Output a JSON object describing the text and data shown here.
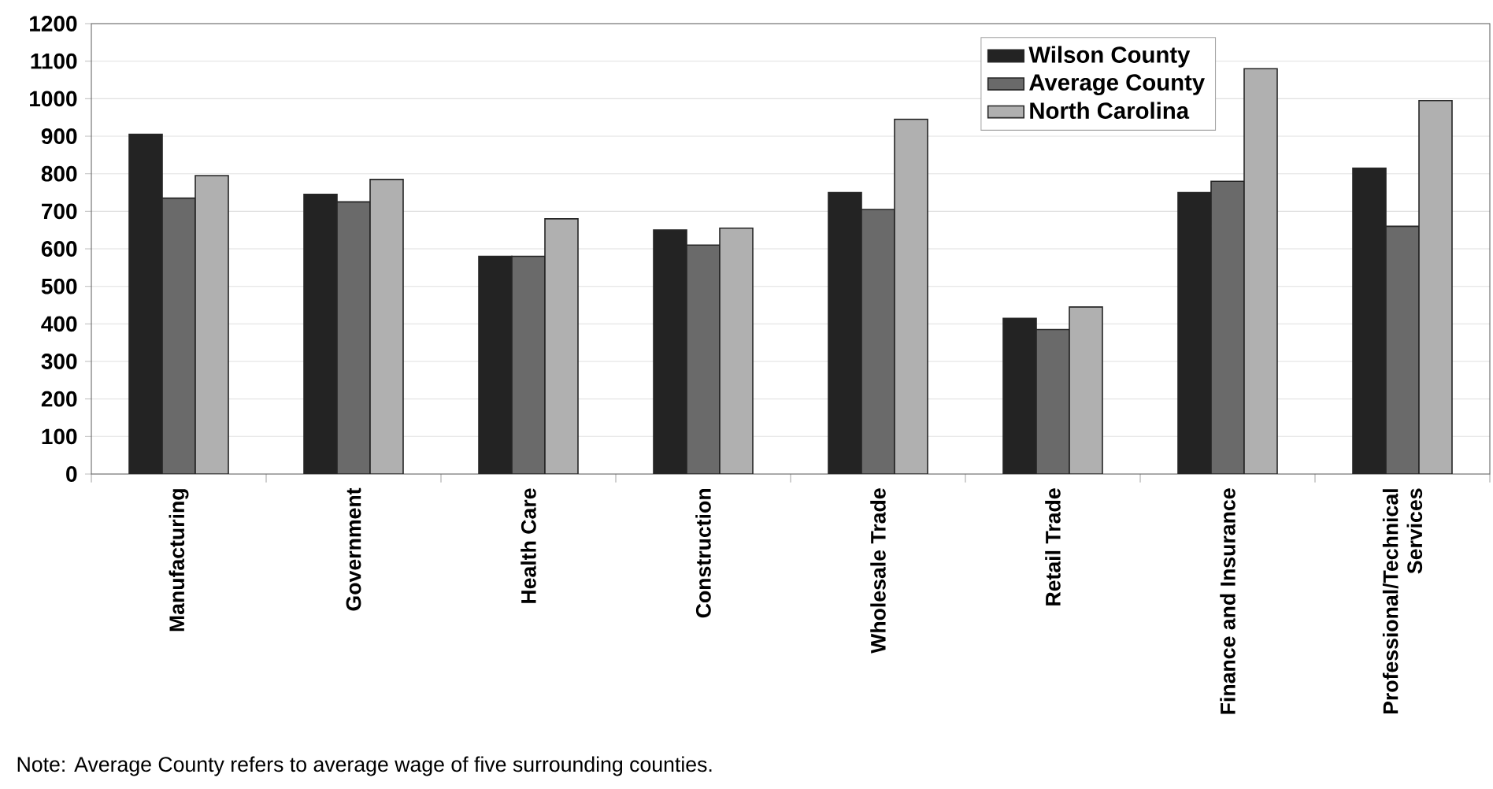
{
  "chart_data": {
    "type": "bar",
    "categories": [
      "Manufacturing",
      "Government",
      "Health Care",
      "Construction",
      "Wholesale Trade",
      "Retail Trade",
      "Finance and Insurance",
      "Professional/Technical Services"
    ],
    "series": [
      {
        "name": "Wilson County",
        "color": "#232323",
        "values": [
          905,
          745,
          580,
          650,
          750,
          415,
          750,
          815
        ]
      },
      {
        "name": "Average County",
        "color": "#6a6a6a",
        "values": [
          735,
          725,
          580,
          610,
          705,
          385,
          780,
          660
        ]
      },
      {
        "name": "North Carolina",
        "color": "#b0b0b0",
        "values": [
          795,
          785,
          680,
          655,
          945,
          445,
          1080,
          995
        ]
      }
    ],
    "ylim": [
      0,
      1200
    ],
    "yticks": [
      0,
      100,
      200,
      300,
      400,
      500,
      600,
      700,
      800,
      900,
      1000,
      1100,
      1200
    ],
    "grid": "y",
    "legend": "top",
    "annotations": [
      "Note: Average County refers to average wage of five surrounding counties."
    ]
  }
}
